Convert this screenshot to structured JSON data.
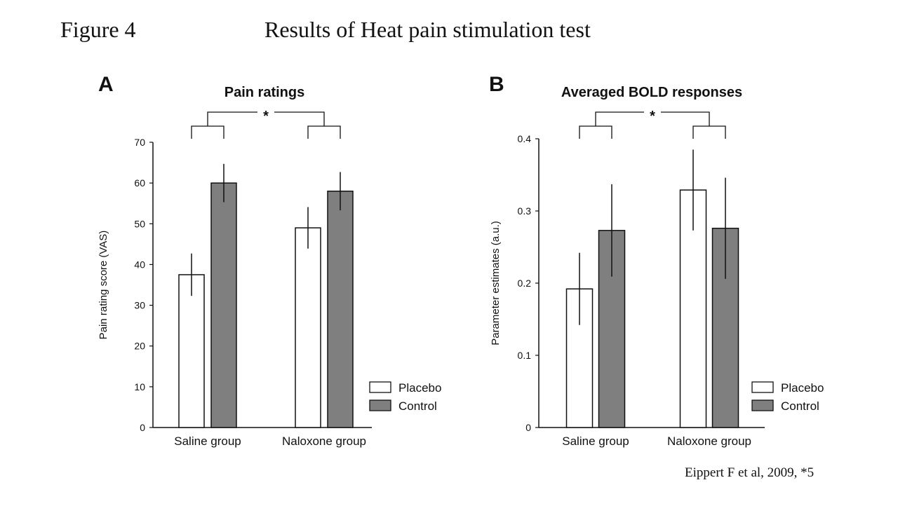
{
  "figure": {
    "label": "Figure 4",
    "title": "Results of Heat pain stimulation test",
    "citation": "Eippert F et al, 2009, *5"
  },
  "colors": {
    "placebo": "#ffffff",
    "control": "#7f7f7f",
    "stroke": "#111111"
  },
  "chart_data": [
    {
      "type": "bar",
      "panel_letter": "A",
      "title": "Pain ratings",
      "ylabel": "Pain rating score (VAS)",
      "xlabel": "",
      "ylim": [
        0,
        70
      ],
      "yticks": [
        0,
        10,
        20,
        30,
        40,
        50,
        60,
        70
      ],
      "tick_labels": [
        "0",
        "10",
        "20",
        "30",
        "40",
        "50",
        "60",
        "70"
      ],
      "categories": [
        "Saline group",
        "Naloxone group"
      ],
      "series": [
        {
          "name": "Placebo",
          "values": [
            37.5,
            49
          ],
          "errors": [
            5.2,
            5.1
          ]
        },
        {
          "name": "Control",
          "values": [
            60,
            58
          ],
          "errors": [
            4.7,
            4.7
          ]
        }
      ],
      "legend": [
        "Placebo",
        "Control"
      ],
      "legend_position": "bottom-right",
      "significance": "*",
      "grid": false
    },
    {
      "type": "bar",
      "panel_letter": "B",
      "title": "Averaged BOLD responses",
      "ylabel": "Parameter estimates (a.u.)",
      "xlabel": "",
      "ylim": [
        0,
        0.4
      ],
      "yticks": [
        0,
        0.1,
        0.2,
        0.3,
        0.4
      ],
      "tick_labels": [
        "0",
        "0.1",
        "0.2",
        "0.3",
        "0.4"
      ],
      "categories": [
        "Saline group",
        "Naloxone group"
      ],
      "series": [
        {
          "name": "Placebo",
          "values": [
            0.192,
            0.329
          ],
          "errors": [
            0.05,
            0.056
          ]
        },
        {
          "name": "Control",
          "values": [
            0.273,
            0.276
          ],
          "errors": [
            0.064,
            0.07
          ]
        }
      ],
      "legend": [
        "Placebo",
        "Control"
      ],
      "legend_position": "bottom-right",
      "significance": "*",
      "grid": false
    }
  ]
}
